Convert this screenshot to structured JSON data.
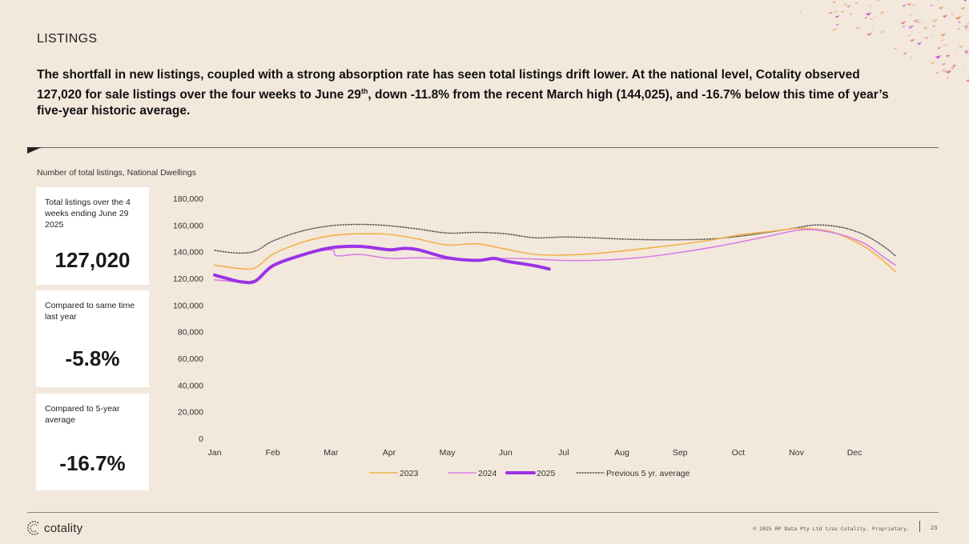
{
  "header": {
    "section_title": "LISTINGS",
    "headline_1": "The shortfall in new listings, coupled with a strong absorption rate has seen total listings drift lower. At the national level, Cotality observed 127,020 for sale listings over the four weeks to June 29",
    "headline_sup": "th",
    "headline_2": ", down -11.8% from the recent March high (144,025), and -16.7% below this time of year’s five-year historic average."
  },
  "chart_subtitle": "Number of total listings, National Dwellings",
  "cards": [
    {
      "label": "Total listings over the 4 weeks ending June 29 2025",
      "value": "127,020"
    },
    {
      "label": "Compared to same time last year",
      "value": "-5.8%"
    },
    {
      "label": "Compared to 5-year average",
      "value": "-16.7%"
    }
  ],
  "footer": {
    "logo_text": "cotality",
    "copyright": "© 2025 RP Data Pty Ltd t/as Cotality. Proprietary.",
    "page_number": "23"
  },
  "chart_data": {
    "type": "line",
    "title": "",
    "xlabel": "",
    "ylabel": "",
    "ylim": [
      0,
      180000
    ],
    "yticks": [
      0,
      20000,
      40000,
      60000,
      80000,
      100000,
      120000,
      140000,
      160000,
      180000
    ],
    "ytick_labels": [
      "0",
      "20,000",
      "40,000",
      "60,000",
      "80,000",
      "100,000",
      "120,000",
      "140,000",
      "160,000",
      "180,000"
    ],
    "xlim": [
      0,
      11.7
    ],
    "month_labels": [
      "Jan",
      "Feb",
      "Mar",
      "Apr",
      "May",
      "Jun",
      "Jul",
      "Aug",
      "Sep",
      "Oct",
      "Nov",
      "Dec"
    ],
    "grid": false,
    "legend_position": "bottom",
    "series": [
      {
        "name": "2023",
        "color": "#f2b24a",
        "style": "solid",
        "weight": "thin",
        "x": [
          0,
          0.4,
          0.7,
          1.0,
          1.5,
          2.0,
          2.5,
          3.0,
          3.5,
          4.0,
          4.5,
          5.0,
          5.5,
          6.0,
          6.5,
          7.0,
          7.5,
          8.0,
          8.5,
          9.0,
          9.5,
          10.0,
          10.3,
          10.6,
          10.9,
          11.2,
          11.5,
          11.7
        ],
        "y": [
          130000,
          127500,
          128000,
          138000,
          147000,
          152000,
          153500,
          153000,
          149500,
          145000,
          146000,
          142000,
          138000,
          137500,
          138500,
          140500,
          143000,
          145500,
          148500,
          152500,
          155000,
          157500,
          157000,
          155000,
          150000,
          143000,
          133000,
          125000
        ]
      },
      {
        "name": "2024",
        "color": "#d77ee6",
        "style": "solid",
        "weight": "thin",
        "x": [
          0,
          0.4,
          0.7,
          1.0,
          1.5,
          2.0,
          2.1,
          2.5,
          3.0,
          3.5,
          4.0,
          4.5,
          5.0,
          5.5,
          6.0,
          6.5,
          7.0,
          7.5,
          8.0,
          8.5,
          9.0,
          9.5,
          10.0,
          10.3,
          10.6,
          10.9,
          11.2,
          11.5,
          11.7
        ],
        "y": [
          119000,
          117500,
          118000,
          130000,
          137500,
          141500,
          137000,
          138000,
          135000,
          135500,
          134500,
          134000,
          135000,
          134500,
          133500,
          133500,
          134500,
          136500,
          139500,
          143000,
          147000,
          151500,
          156000,
          156500,
          154500,
          151000,
          145500,
          136000,
          130000
        ]
      },
      {
        "name": "2025",
        "color": "#9a33e6",
        "style": "solid",
        "weight": "thick",
        "x": [
          0,
          0.25,
          0.45,
          0.7,
          1.0,
          1.5,
          2.0,
          2.5,
          3.0,
          3.25,
          3.5,
          4.0,
          4.5,
          4.8,
          5.0,
          5.5,
          5.75
        ],
        "y": [
          122500,
          119500,
          117500,
          118000,
          129500,
          137500,
          143000,
          144000,
          141500,
          142500,
          141500,
          135500,
          133500,
          135000,
          133000,
          129500,
          127000
        ]
      },
      {
        "name": "Previous 5 yr. average",
        "color": "#555555",
        "style": "dotted",
        "weight": "thin",
        "x": [
          0,
          0.4,
          0.7,
          1.0,
          1.5,
          2.0,
          2.5,
          3.0,
          3.5,
          4.0,
          4.5,
          5.0,
          5.5,
          6.0,
          6.5,
          7.0,
          7.5,
          8.0,
          8.5,
          9.0,
          9.5,
          10.0,
          10.3,
          10.6,
          10.9,
          11.2,
          11.5,
          11.7
        ],
        "y": [
          141000,
          139000,
          140500,
          148000,
          155500,
          159500,
          160500,
          159500,
          157000,
          154000,
          154500,
          153500,
          150500,
          151000,
          150500,
          149500,
          149000,
          149000,
          149500,
          151500,
          154500,
          158000,
          160000,
          159500,
          157000,
          152000,
          144000,
          137000
        ]
      }
    ]
  }
}
